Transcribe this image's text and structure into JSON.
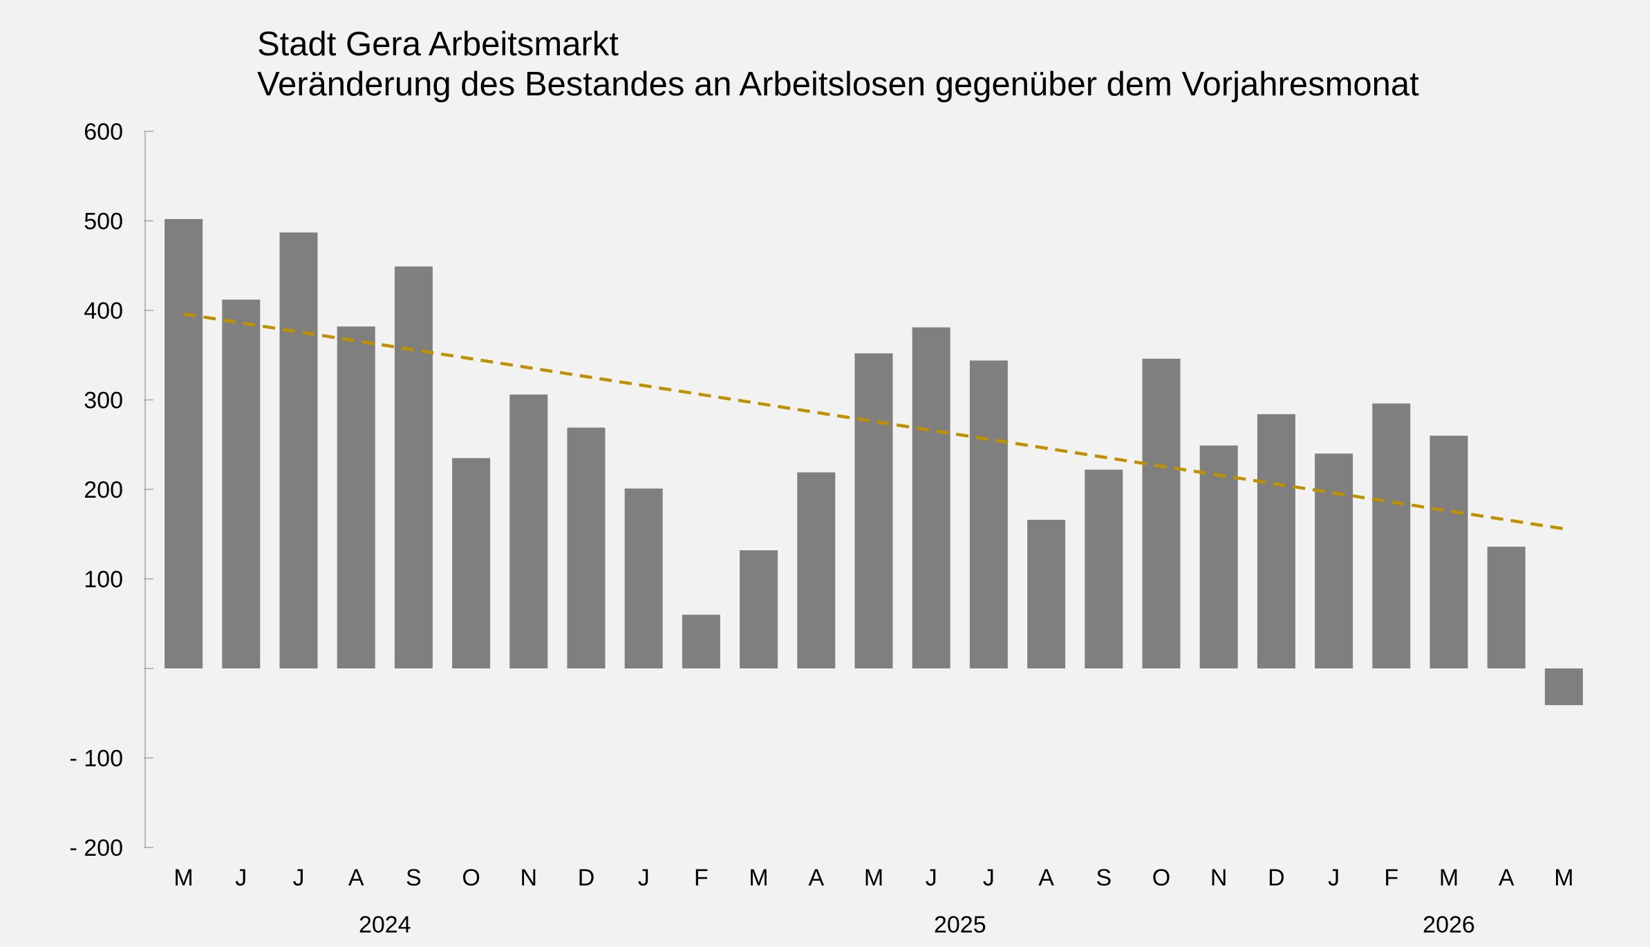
{
  "chart_data": {
    "type": "bar",
    "title": "Stadt Gera Arbeitsmarkt",
    "subtitle": "Veränderung des Bestandes an Arbeitslosen gegenüber dem Vorjahresmonat",
    "xlabel": "",
    "ylabel": "",
    "ylim": [
      -200,
      600
    ],
    "yticks": [
      {
        "value": 600,
        "label": "600"
      },
      {
        "value": 500,
        "label": "500"
      },
      {
        "value": 400,
        "label": "400"
      },
      {
        "value": 300,
        "label": "300"
      },
      {
        "value": 200,
        "label": "200"
      },
      {
        "value": 100,
        "label": "100"
      },
      {
        "value": 0,
        "label": ""
      },
      {
        "value": -100,
        "label": "-  100"
      },
      {
        "value": -200,
        "label": "-  200"
      }
    ],
    "categories": [
      "M",
      "J",
      "J",
      "A",
      "S",
      "O",
      "N",
      "D",
      "J",
      "F",
      "M",
      "A",
      "M",
      "J",
      "J",
      "A",
      "S",
      "O",
      "N",
      "D",
      "J",
      "F",
      "M",
      "A",
      "M"
    ],
    "values": [
      502,
      412,
      487,
      382,
      449,
      235,
      306,
      269,
      201,
      60,
      132,
      219,
      352,
      381,
      344,
      166,
      222,
      346,
      249,
      284,
      240,
      296,
      260,
      136,
      -41
    ],
    "years": [
      {
        "label": "2024",
        "start": 0,
        "end": 7
      },
      {
        "label": "2025",
        "start": 8,
        "end": 19
      },
      {
        "label": "2026",
        "start": 20,
        "end": 24
      }
    ],
    "trendline": {
      "style": "dashed",
      "start": 396,
      "end": 156
    },
    "grid": false,
    "legend": "none",
    "colors": {
      "bar": "#7f7f7f",
      "trend": "#bf9000",
      "axis": "#a6a6a6",
      "background": "#f2f2f2"
    }
  }
}
